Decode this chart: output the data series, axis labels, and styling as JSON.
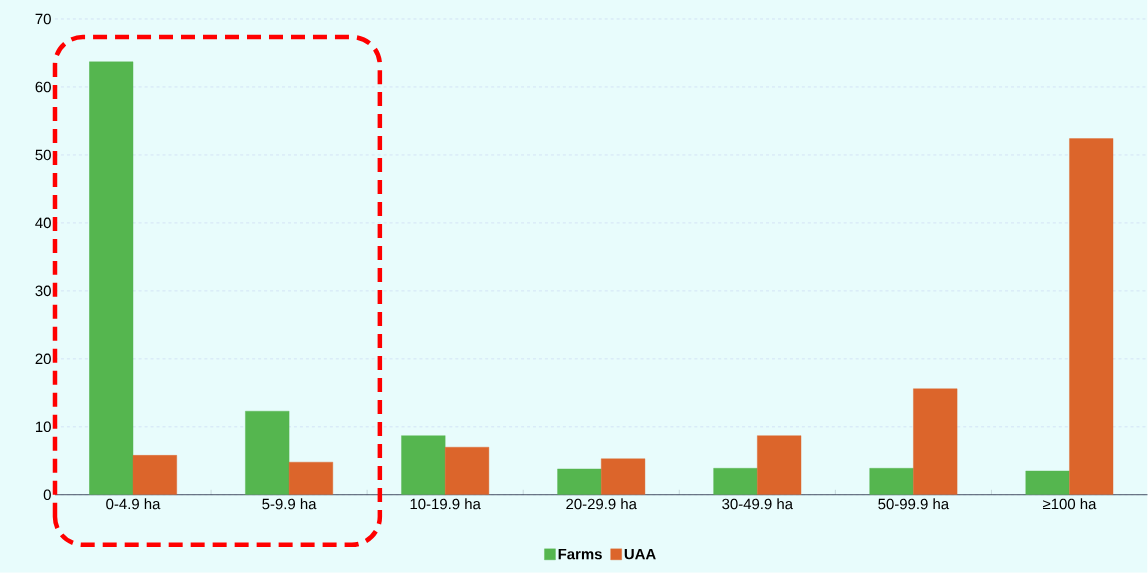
{
  "chart_data": {
    "type": "bar",
    "categories": [
      "0-4.9 ha",
      "5-9.9 ha",
      "10-19.9 ha",
      "20-29.9 ha",
      "30-49.9 ha",
      "50-99.9 ha",
      "≥100 ha"
    ],
    "series": [
      {
        "name": "Farms",
        "color": "#55b64f",
        "values": [
          63.7,
          12.3,
          8.7,
          3.8,
          3.9,
          3.9,
          3.5
        ]
      },
      {
        "name": "UAA",
        "color": "#dc652b",
        "values": [
          5.8,
          4.8,
          7.0,
          5.3,
          8.7,
          15.6,
          52.4
        ]
      }
    ],
    "ylim": [
      0,
      70
    ],
    "yticks": [
      0,
      10,
      20,
      30,
      40,
      50,
      60,
      70
    ],
    "grid": "y",
    "legend": "bottom"
  }
}
